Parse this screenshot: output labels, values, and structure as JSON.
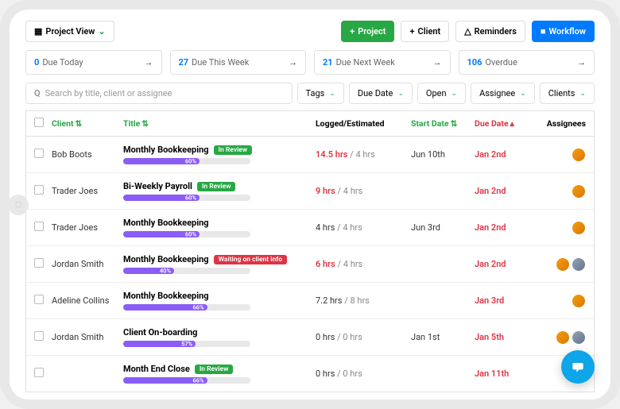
{
  "colors": {
    "green": "#28a745",
    "blue": "#007bff",
    "red": "#dc3545",
    "purple": "#8b5cf6",
    "chat": "#0ea5e9"
  },
  "topbar": {
    "project_view": "Project View",
    "add_project": "Project",
    "add_client": "Client",
    "reminders": "Reminders",
    "workflow": "Workflow"
  },
  "stats": [
    {
      "count": "0",
      "label": "Due Today"
    },
    {
      "count": "27",
      "label": "Due This Week"
    },
    {
      "count": "21",
      "label": "Due Next Week"
    },
    {
      "count": "106",
      "label": "Overdue"
    }
  ],
  "search": {
    "placeholder": "Search by title, client or assignee"
  },
  "filters": {
    "tags": "Tags",
    "due_date": "Due Date",
    "open": "Open",
    "assignee": "Assignee",
    "clients": "Clients"
  },
  "columns": {
    "client": "Client",
    "title": "Title",
    "logged": "Logged/Estimated",
    "start": "Start Date",
    "due": "Due Date",
    "assignees": "Assignees"
  },
  "rows": [
    {
      "client": "Bob Boots",
      "title": "Monthly Bookkeeping",
      "badge": {
        "text": "In Review",
        "color": "green"
      },
      "progress": 60,
      "logged": "14.5 hrs",
      "logged_over": true,
      "est": "4 hrs",
      "start": "Jun 10th",
      "due": "Jan 2nd",
      "avatars": 1
    },
    {
      "client": "Trader Joes",
      "title": "Bi-Weekly Payroll",
      "badge": {
        "text": "In Review",
        "color": "green"
      },
      "progress": 60,
      "logged": "9 hrs",
      "logged_over": true,
      "est": "4 hrs",
      "start": "",
      "due": "Jan 2nd",
      "avatars": 1
    },
    {
      "client": "Trader Joes",
      "title": "Monthly Bookkeeping",
      "badge": null,
      "progress": 60,
      "logged": "4 hrs",
      "logged_over": false,
      "est": "4 hrs",
      "start": "Jun 3rd",
      "due": "Jan 2nd",
      "avatars": 1
    },
    {
      "client": "Jordan Smith",
      "title": "Monthly Bookkeeping",
      "badge": {
        "text": "Waiting on client info",
        "color": "red"
      },
      "progress": 40,
      "logged": "6 hrs",
      "logged_over": true,
      "est": "4 hrs",
      "start": "",
      "due": "Jan 2nd",
      "avatars": 2
    },
    {
      "client": "Adeline Collins",
      "title": "Monthly Bookkeeping",
      "badge": null,
      "progress": 66,
      "logged": "7.2 hrs",
      "logged_over": false,
      "est": "8 hrs",
      "start": "",
      "due": "Jan 3rd",
      "avatars": 1
    },
    {
      "client": "Jordan Smith",
      "title": "Client On-boarding",
      "badge": null,
      "progress": 57,
      "logged": "0 hrs",
      "logged_over": false,
      "est": "0 hrs",
      "start": "Jan 1st",
      "due": "Jan 5th",
      "avatars": 2
    },
    {
      "client": "",
      "title": "Month End Close",
      "badge": {
        "text": "In Review",
        "color": "green"
      },
      "progress": 66,
      "logged": "0 hrs",
      "logged_over": false,
      "est": "0 hrs",
      "start": "",
      "due": "Jan 11th",
      "avatars": 0
    }
  ]
}
